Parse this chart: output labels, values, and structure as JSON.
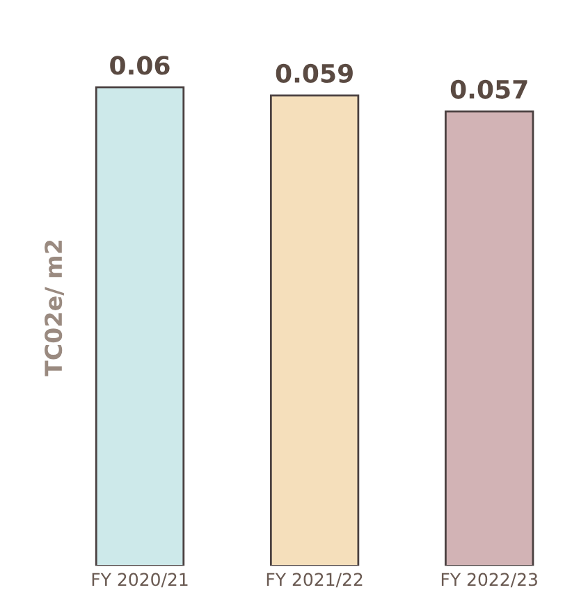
{
  "chart_data": {
    "type": "bar",
    "ylabel": "TC02e/ m2",
    "categories": [
      "FY 2020/21",
      "FY 2021/22",
      "FY 2022/23"
    ],
    "values": [
      0.06,
      0.059,
      0.057
    ],
    "colors": [
      "#cde9ea",
      "#f5dfbb",
      "#d2b3b5"
    ],
    "data_labels": true,
    "grid": false,
    "legend": false,
    "tick_labels": "x"
  }
}
